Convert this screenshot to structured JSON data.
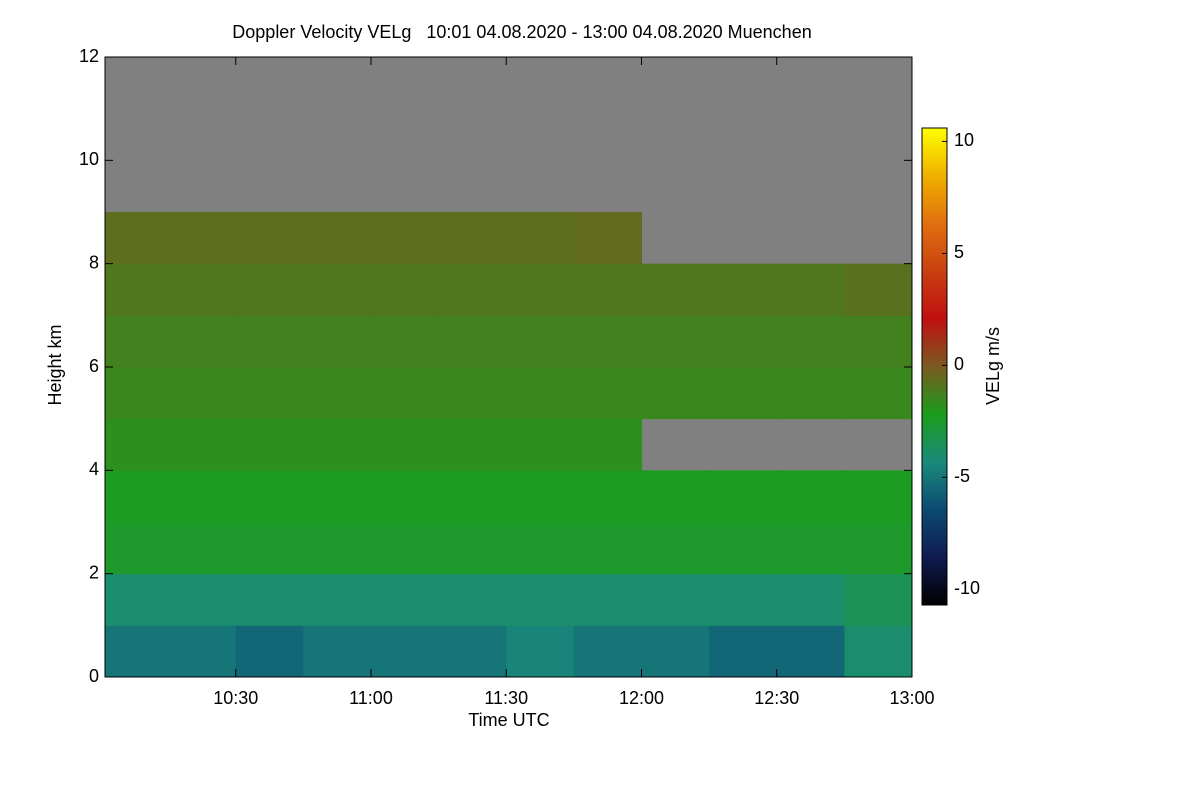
{
  "chart_data": {
    "type": "heatmap",
    "title": "Doppler Velocity VELg   10:01 04.08.2020 - 13:00 04.08.2020 Muenchen",
    "x_label": "Time UTC",
    "y_label": "Height km",
    "colorbar_label": "VELg m/s",
    "x": [
      10.125,
      10.375,
      10.625,
      10.875,
      11.125,
      11.375,
      11.625,
      11.875,
      12.125,
      12.375,
      12.625,
      12.875
    ],
    "y": [
      0.5,
      1.5,
      2.5,
      3.5,
      4.5,
      5.5,
      6.5,
      7.5,
      8.5,
      9.5,
      10.5,
      11.5
    ],
    "z": [
      [
        -5,
        -5,
        -5.5,
        -5,
        -5,
        -5,
        -4.5,
        -5,
        -5,
        -5.5,
        -5.5,
        -4
      ],
      [
        -4,
        -4,
        -4,
        -4,
        -4,
        -4,
        -4,
        -4,
        -4,
        -4,
        -4,
        -3.5
      ],
      [
        -2.5,
        -2.5,
        -2.5,
        -2.5,
        -2.5,
        -2.5,
        -2.5,
        -2.5,
        -2.5,
        -2.5,
        -2.5,
        -2.5
      ],
      [
        -2.3,
        -2.3,
        -2.3,
        -2.3,
        -2.3,
        -2.3,
        -2.3,
        -2.3,
        -2.3,
        -2.3,
        -2.3,
        -2.3
      ],
      [
        -1.8,
        -1.8,
        -1.8,
        -1.8,
        -1.8,
        -1.8,
        -1.8,
        -1.8,
        null,
        null,
        null,
        null
      ],
      [
        -1.5,
        -1.5,
        -1.5,
        -1.5,
        -1.5,
        -1.5,
        -1.5,
        -1.5,
        -1.5,
        -1.5,
        -1.5,
        -1.5
      ],
      [
        -1.3,
        -1.3,
        -1.3,
        -1.3,
        -1.3,
        -1.3,
        -1.3,
        -1.3,
        -1.3,
        -1.3,
        -1.3,
        -1.3
      ],
      [
        -1,
        -1,
        -1,
        -1,
        -1,
        -1,
        -1,
        -1,
        -1,
        -1,
        -1,
        -0.8
      ],
      [
        -0.7,
        -0.7,
        -0.7,
        -0.7,
        -0.7,
        -0.7,
        -0.7,
        -0.6,
        null,
        null,
        null,
        null
      ],
      [
        null,
        null,
        null,
        null,
        null,
        null,
        null,
        null,
        null,
        null,
        null,
        null
      ],
      [
        null,
        null,
        null,
        null,
        null,
        null,
        null,
        null,
        null,
        null,
        null,
        null
      ],
      [
        null,
        null,
        null,
        null,
        null,
        null,
        null,
        null,
        null,
        null,
        null,
        null
      ]
    ],
    "xlim": [
      10.0167,
      13.0
    ],
    "xticks": [
      {
        "value": 10.5,
        "label": "10:30"
      },
      {
        "value": 11.0,
        "label": "11:00"
      },
      {
        "value": 11.5,
        "label": "11:30"
      },
      {
        "value": 12.0,
        "label": "12:00"
      },
      {
        "value": 12.5,
        "label": "12:30"
      },
      {
        "value": 13.0,
        "label": "13:00"
      }
    ],
    "ylim": [
      0,
      12
    ],
    "yticks": [
      0,
      2,
      4,
      6,
      8,
      10,
      12
    ],
    "zlim": [
      -10.7,
      10.6
    ],
    "zticks": [
      -10,
      -5,
      0,
      5,
      10
    ],
    "colormap": [
      "#000000",
      "#101a50",
      "#0c4a72",
      "#1a8a7a",
      "#1c9c1c",
      "#7a5a20",
      "#c01010",
      "#c84010",
      "#e07010",
      "#f0b000",
      "#ffff00"
    ],
    "missing_color": "#808080"
  }
}
